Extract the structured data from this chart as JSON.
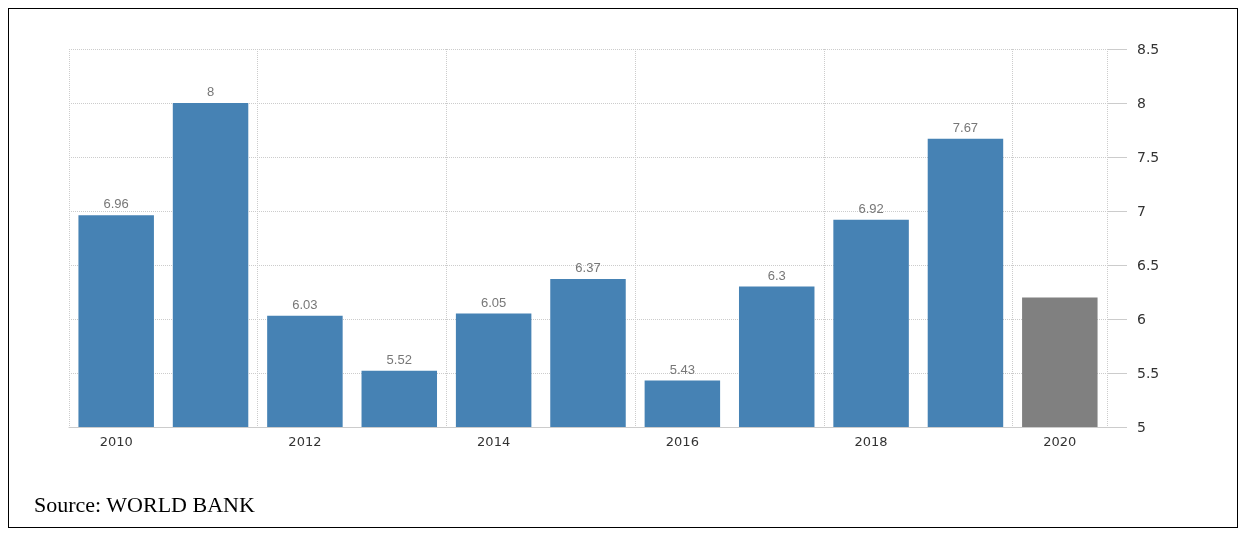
{
  "chart_data": {
    "type": "bar",
    "categories": [
      "2010",
      null,
      "2012",
      null,
      "2014",
      null,
      "2016",
      null,
      "2018",
      null,
      "2020"
    ],
    "values": [
      6.96,
      8,
      6.03,
      5.52,
      6.05,
      6.37,
      5.43,
      6.3,
      6.92,
      7.67,
      6.2
    ],
    "colors": [
      "#4682b4",
      "#4682b4",
      "#4682b4",
      "#4682b4",
      "#4682b4",
      "#4682b4",
      "#4682b4",
      "#4682b4",
      "#4682b4",
      "#4682b4",
      "#808080"
    ],
    "value_labels": [
      "6.96",
      "8",
      "6.03",
      "5.52",
      "6.05",
      "6.37",
      "5.43",
      "6.3",
      "6.92",
      "7.67",
      null
    ],
    "ylim": [
      5,
      8.5
    ],
    "yticks": [
      5,
      5.5,
      6,
      6.5,
      7,
      7.5,
      8,
      8.5
    ],
    "grid": true,
    "annotations": [
      "Source: WORLD BANK"
    ]
  }
}
